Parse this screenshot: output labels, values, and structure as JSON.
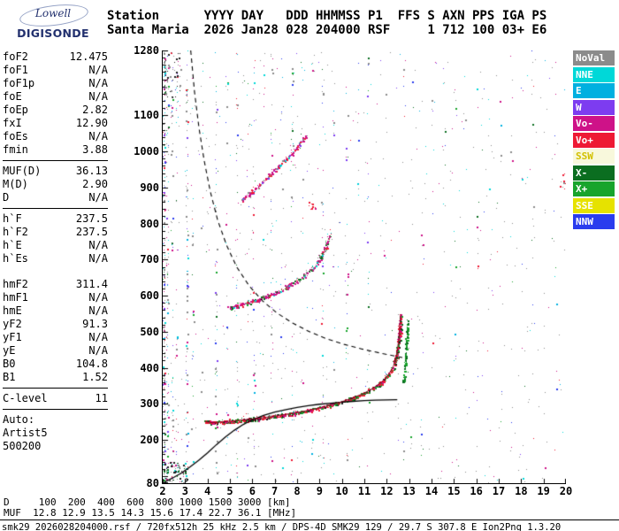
{
  "logo": {
    "line1": "Lowell",
    "line2": "DIGISONDE"
  },
  "header": {
    "line1": "Station      YYYY DAY   DDD HHMMSS P1  FFS S AXN PPS IGA PS",
    "line2": "Santa Maria  2026 Jan28 028 204000 RSF     1 712 100 03+ E6"
  },
  "panel": {
    "rows": [
      {
        "label": "foF2",
        "value": "12.475"
      },
      {
        "label": "foF1",
        "value": "N/A"
      },
      {
        "label": "foF1p",
        "value": "N/A"
      },
      {
        "label": "foE",
        "value": "N/A"
      },
      {
        "label": "foEp",
        "value": "2.82"
      },
      {
        "label": "fxI",
        "value": "12.90"
      },
      {
        "label": "foEs",
        "value": "N/A"
      },
      {
        "label": "fmin",
        "value": "3.88"
      },
      {
        "sep": true
      },
      {
        "label": "MUF(D)",
        "value": "36.13"
      },
      {
        "label": "M(D)",
        "value": "2.90"
      },
      {
        "label": "D",
        "value": "N/A"
      },
      {
        "sep": true
      },
      {
        "label": "h`F",
        "value": "237.5"
      },
      {
        "label": "h`F2",
        "value": "237.5"
      },
      {
        "label": "h`E",
        "value": "N/A"
      },
      {
        "label": "h`Es",
        "value": "N/A"
      },
      {
        "gap": true
      },
      {
        "label": "hmF2",
        "value": "311.4"
      },
      {
        "label": "hmF1",
        "value": "N/A"
      },
      {
        "label": "hmE",
        "value": "N/A"
      },
      {
        "label": "yF2",
        "value": "91.3"
      },
      {
        "label": "yF1",
        "value": "N/A"
      },
      {
        "label": "yE",
        "value": "N/A"
      },
      {
        "label": "B0",
        "value": "104.8"
      },
      {
        "label": "B1",
        "value": "1.52"
      },
      {
        "sep": true
      },
      {
        "label": "C-level",
        "value": "11"
      },
      {
        "sep": true
      },
      {
        "label": "Auto:",
        "value": ""
      },
      {
        "label": "Artist5",
        "value": ""
      },
      {
        "label": "500200",
        "value": ""
      }
    ]
  },
  "legend": {
    "items": [
      {
        "label": "NoVal",
        "key": "NoVal"
      },
      {
        "label": "NNE",
        "key": "NNE"
      },
      {
        "label": "E",
        "key": "E"
      },
      {
        "label": "W",
        "key": "W"
      },
      {
        "label": "Vo-",
        "key": "Vo-"
      },
      {
        "label": "Vo+",
        "key": "Vo+"
      },
      {
        "label": "SSW",
        "key": "SSW",
        "text_color": "#d2c000"
      },
      {
        "label": "X-",
        "key": "X-"
      },
      {
        "label": "X+",
        "key": "X+"
      },
      {
        "label": "SSE",
        "key": "SSE"
      },
      {
        "label": "NNW",
        "key": "NNW"
      }
    ]
  },
  "colors": {
    "NoVal": "#8b8b8b",
    "NNE": "#00d8d8",
    "E": "#00b0e0",
    "W": "#7d3cf0",
    "Vo-": "#ce1288",
    "Vo+": "#ee1a34",
    "SSW": "#f8f8dc",
    "X-": "#0b6e20",
    "X+": "#18a42c",
    "SSE": "#e6e200",
    "NNW": "#2a3cee",
    "dark": "#1e1e1e",
    "profile": "#000000",
    "fitted": "#8a0020",
    "dashed": "#000000"
  },
  "dmuf": {
    "line1": "D     100  200  400  600  800 1000 1500 3000 [km]",
    "line2": "MUF  12.8 12.9 13.5 14.3 15.6 17.4 22.7 36.1 [MHz]",
    "distances_km": [
      100,
      200,
      400,
      600,
      800,
      1000,
      1500,
      3000
    ],
    "muf_mhz": [
      12.8,
      12.9,
      13.5,
      14.3,
      15.6,
      17.4,
      22.7,
      36.1
    ]
  },
  "footer": {
    "text": "smk29_2026028204000.rsf / 720fx512h 25 kHz 2.5 km / DPS-4D SMK29 129 / 29.7 S 307.8 E Ion2Png 1.3.20"
  },
  "chart_data": {
    "type": "scatter",
    "title": "Santa Maria ionogram 2026 Jan28 204000",
    "xlabel": "[MHz]",
    "ylabel": "[km]",
    "xlim": [
      2,
      20
    ],
    "ylim": [
      80,
      1280
    ],
    "x_ticks": [
      2,
      3,
      4,
      5,
      6,
      7,
      8,
      9,
      10,
      11,
      12,
      13,
      14,
      15,
      16,
      17,
      18,
      19,
      20
    ],
    "y_tick_labels": [
      1280,
      1100,
      1000,
      900,
      800,
      700,
      600,
      500,
      400,
      300,
      200,
      80
    ],
    "grid": false,
    "traces": [
      {
        "name": "F2 first hop echo (O and X)",
        "fit_line": true,
        "density": 3.0,
        "jitter": 2.0,
        "palette": {
          "Vo+": 0.4,
          "X+": 0.2,
          "Vo-": 0.15,
          "X-": 0.12,
          "dark": 0.13
        },
        "points": [
          [
            3.88,
            252
          ],
          [
            4.1,
            248
          ],
          [
            4.5,
            249
          ],
          [
            5.0,
            252
          ],
          [
            5.5,
            255
          ],
          [
            6.0,
            258
          ],
          [
            6.5,
            262
          ],
          [
            7.0,
            266
          ],
          [
            7.5,
            271
          ],
          [
            8.0,
            276
          ],
          [
            8.5,
            282
          ],
          [
            9.0,
            289
          ],
          [
            9.5,
            297
          ],
          [
            10.0,
            306
          ],
          [
            10.5,
            317
          ],
          [
            11.0,
            330
          ],
          [
            11.4,
            344
          ],
          [
            11.8,
            362
          ],
          [
            12.1,
            383
          ],
          [
            12.3,
            405
          ],
          [
            12.45,
            438
          ],
          [
            12.55,
            485
          ],
          [
            12.62,
            548
          ]
        ]
      },
      {
        "name": "F2 X-mode cusp near fxI",
        "fit_line": false,
        "density": 1.7,
        "jitter": 1.3,
        "palette": {
          "X+": 0.65,
          "X-": 0.35
        },
        "points": [
          [
            12.75,
            360
          ],
          [
            12.82,
            420
          ],
          [
            12.88,
            475
          ],
          [
            12.93,
            540
          ]
        ]
      },
      {
        "name": "F2 second hop echo",
        "fit_line": false,
        "density": 2.2,
        "jitter": 2.4,
        "palette": {
          "Vo-": 0.5,
          "Vo+": 0.12,
          "X-": 0.12,
          "X+": 0.08,
          "NNE": 0.1,
          "NoVal": 0.08
        },
        "points": [
          [
            4.95,
            566
          ],
          [
            5.4,
            575
          ],
          [
            5.9,
            584
          ],
          [
            6.4,
            594
          ],
          [
            6.9,
            606
          ],
          [
            7.4,
            620
          ],
          [
            7.9,
            638
          ],
          [
            8.4,
            661
          ],
          [
            8.9,
            692
          ],
          [
            9.2,
            725
          ],
          [
            9.45,
            772
          ]
        ]
      },
      {
        "name": "F2 third hop echo",
        "fit_line": false,
        "density": 1.6,
        "jitter": 2.2,
        "palette": {
          "Vo-": 0.55,
          "Vo+": 0.2,
          "NNE": 0.08,
          "W": 0.07,
          "NoVal": 0.1
        },
        "points": [
          [
            5.45,
            860
          ],
          [
            5.9,
            886
          ],
          [
            6.4,
            914
          ],
          [
            6.9,
            943
          ],
          [
            7.4,
            974
          ],
          [
            7.9,
            1006
          ],
          [
            8.45,
            1046
          ]
        ]
      }
    ],
    "profile_line": [
      [
        2.08,
        83
      ],
      [
        2.4,
        93
      ],
      [
        2.8,
        107
      ],
      [
        3.2,
        124
      ],
      [
        3.6,
        143
      ],
      [
        4.0,
        164
      ],
      [
        4.4,
        187
      ],
      [
        4.8,
        208
      ],
      [
        5.2,
        227
      ],
      [
        5.6,
        243
      ],
      [
        6.0,
        256
      ],
      [
        6.5,
        268
      ],
      [
        7.0,
        277
      ],
      [
        7.5,
        284
      ],
      [
        8.0,
        290
      ],
      [
        8.5,
        295
      ],
      [
        9.0,
        299
      ],
      [
        9.5,
        302
      ],
      [
        10.0,
        305
      ],
      [
        10.5,
        307
      ],
      [
        11.0,
        309
      ],
      [
        11.5,
        310.3
      ],
      [
        12.0,
        311
      ],
      [
        12.47,
        311.4
      ]
    ],
    "dashed_transmission_curve": [
      [
        3.25,
        1280
      ],
      [
        3.42,
        1165
      ],
      [
        3.62,
        1065
      ],
      [
        3.85,
        975
      ],
      [
        4.12,
        890
      ],
      [
        4.45,
        810
      ],
      [
        4.85,
        740
      ],
      [
        5.3,
        680
      ],
      [
        5.85,
        628
      ],
      [
        6.45,
        586
      ],
      [
        7.1,
        552
      ],
      [
        7.8,
        524
      ],
      [
        8.55,
        500
      ],
      [
        9.3,
        481
      ],
      [
        10.1,
        465
      ],
      [
        10.9,
        452
      ],
      [
        11.7,
        441
      ],
      [
        12.4,
        432
      ],
      [
        12.9,
        426
      ]
    ],
    "noise_columns": [
      {
        "f": 2.05,
        "n": 160
      },
      {
        "f": 2.2,
        "n": 80
      },
      {
        "f": 2.4,
        "n": 50
      },
      {
        "f": 2.62,
        "n": 35
      },
      {
        "f": 3.07,
        "n": 85
      },
      {
        "f": 3.32,
        "n": 25
      },
      {
        "f": 3.75,
        "n": 15
      },
      {
        "f": 4.37,
        "n": 55
      },
      {
        "f": 4.85,
        "n": 18
      },
      {
        "f": 5.3,
        "n": 45
      },
      {
        "f": 5.77,
        "n": 16
      },
      {
        "f": 6.05,
        "n": 40
      },
      {
        "f": 6.5,
        "n": 15
      },
      {
        "f": 6.85,
        "n": 38
      },
      {
        "f": 7.3,
        "n": 13
      },
      {
        "f": 7.77,
        "n": 40
      },
      {
        "f": 8.2,
        "n": 13
      },
      {
        "f": 8.65,
        "n": 12
      },
      {
        "f": 9.12,
        "n": 35
      },
      {
        "f": 9.6,
        "n": 12
      },
      {
        "f": 10.2,
        "n": 30
      },
      {
        "f": 10.7,
        "n": 10
      },
      {
        "f": 11.15,
        "n": 26
      },
      {
        "f": 11.9,
        "n": 10
      },
      {
        "f": 12.75,
        "n": 8
      },
      {
        "f": 13.1,
        "n": 9
      },
      {
        "f": 13.55,
        "n": 13
      },
      {
        "f": 14.05,
        "n": 8
      },
      {
        "f": 14.55,
        "n": 8
      },
      {
        "f": 15.05,
        "n": 8
      },
      {
        "f": 15.55,
        "n": 7
      },
      {
        "f": 16.05,
        "n": 10
      },
      {
        "f": 16.55,
        "n": 7
      },
      {
        "f": 17.05,
        "n": 7
      },
      {
        "f": 17.55,
        "n": 7
      },
      {
        "f": 18.05,
        "n": 6
      },
      {
        "f": 18.5,
        "n": 10
      },
      {
        "f": 19.05,
        "n": 6
      },
      {
        "f": 19.55,
        "n": 6
      }
    ],
    "clusters": [
      {
        "f": [
          2.0,
          3.1
        ],
        "h": [
          80,
          140
        ],
        "n": 85,
        "palette": {
          "dark": 0.45,
          "NoVal": 0.28,
          "Vo-": 0.1,
          "X-": 0.09,
          "NNE": 0.08
        }
      },
      {
        "f": [
          2.0,
          2.8
        ],
        "h": [
          1150,
          1280
        ],
        "n": 50,
        "palette": {
          "dark": 0.55,
          "NoVal": 0.32,
          "Vo-": 0.13
        }
      },
      {
        "f": [
          8.5,
          8.8
        ],
        "h": [
          838,
          862
        ],
        "n": 12,
        "palette": {
          "Vo+": 0.85,
          "Vo-": 0.15
        }
      },
      {
        "f": [
          19.7,
          19.95
        ],
        "h": [
          895,
          940
        ],
        "n": 9,
        "palette": {
          "Vo+": 0.85,
          "NoVal": 0.15
        }
      }
    ],
    "background_noise_count": 500,
    "noise_palette": {
      "NoVal": 0.34,
      "Vo-": 0.15,
      "NNE": 0.11,
      "W": 0.09,
      "NNW": 0.08,
      "X-": 0.07,
      "E": 0.06,
      "Vo+": 0.05,
      "X+": 0.05
    },
    "background_palette": {
      "NoVal": 0.55,
      "NNE": 0.09,
      "Vo-": 0.12,
      "W": 0.06,
      "X-": 0.06,
      "NNW": 0.05,
      "E": 0.04,
      "Vo+": 0.03
    }
  }
}
